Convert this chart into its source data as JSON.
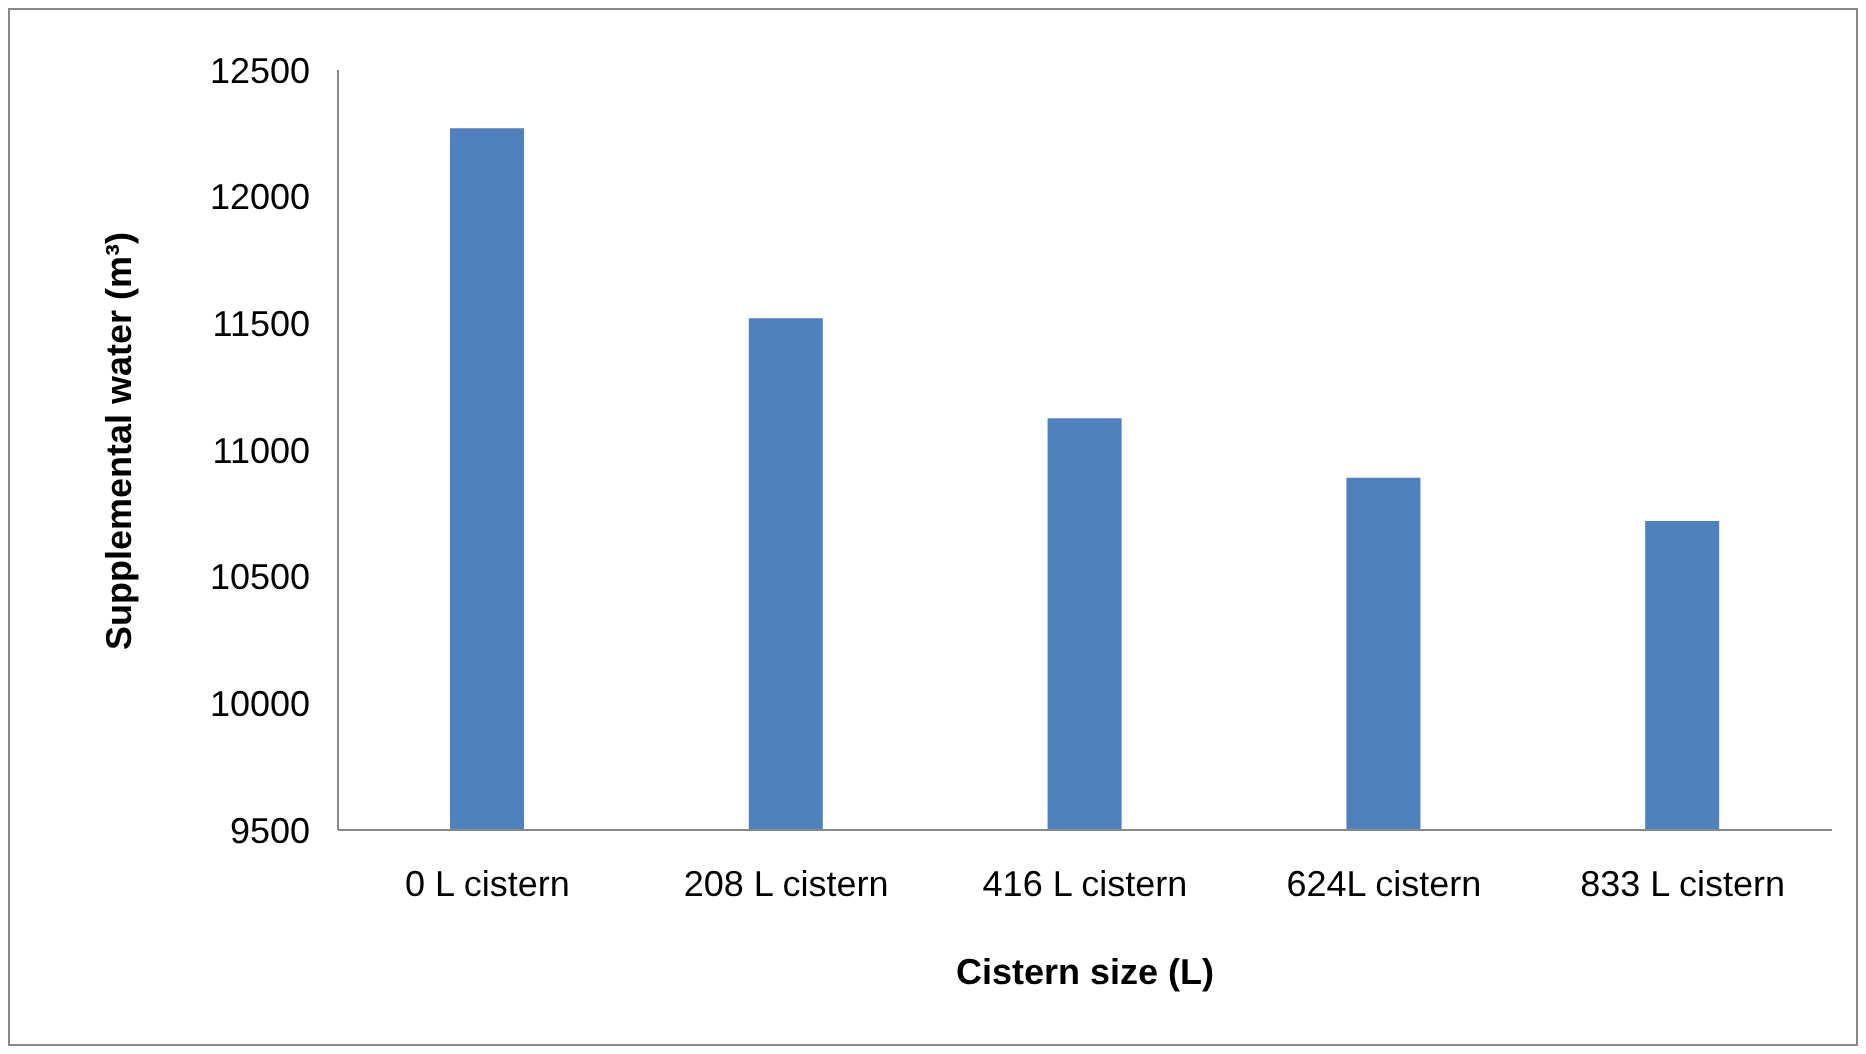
{
  "chart_data": {
    "type": "bar",
    "xlabel": "Cistern size (L)",
    "ylabel": "Supplemental water (m³)",
    "categories": [
      "0 L cistern",
      "208 L cistern",
      "416 L cistern",
      "624L cistern",
      "833 L cistern"
    ],
    "values": [
      12270,
      11520,
      11125,
      10890,
      10720
    ],
    "color": "#4f81bd",
    "ylim": [
      9500,
      12500
    ],
    "yticks": [
      9500,
      10000,
      10500,
      11000,
      11500,
      12000,
      12500
    ],
    "grid": false,
    "legend": false
  }
}
